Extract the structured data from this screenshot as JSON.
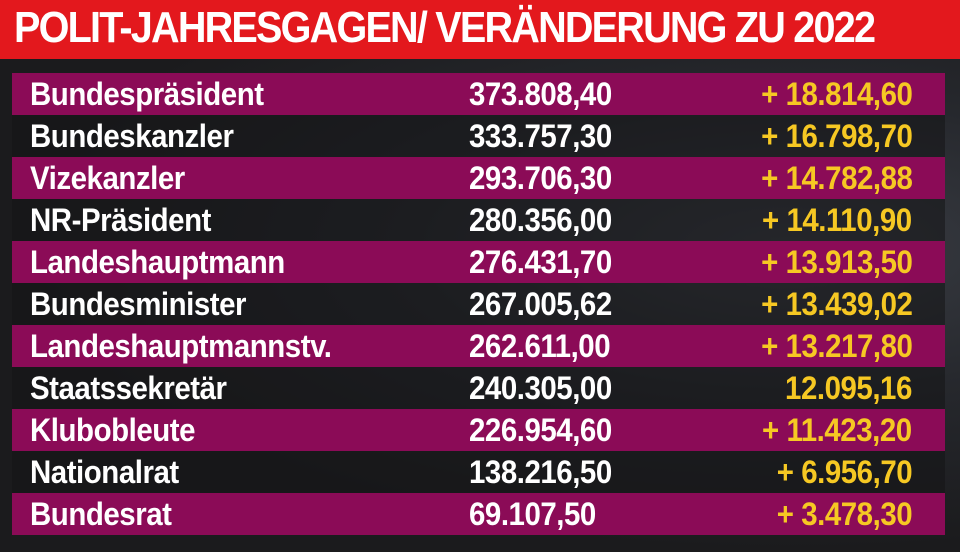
{
  "title": "POLIT-JAHRESGAGEN/ VERÄNDERUNG ZU 2022",
  "colors": {
    "title_bar": "#e3181d",
    "row_accent": "#8b0b57",
    "change_text": "#f6c823",
    "text": "#ffffff"
  },
  "chart_data": {
    "type": "table",
    "title": "POLIT-JAHRESGAGEN/ VERÄNDERUNG ZU 2022",
    "rows": [
      {
        "label": "Bundespräsident",
        "value": "373.808,40",
        "change": "+ 18.814,60"
      },
      {
        "label": "Bundeskanzler",
        "value": "333.757,30",
        "change": "+ 16.798,70"
      },
      {
        "label": "Vizekanzler",
        "value": "293.706,30",
        "change": "+ 14.782,88"
      },
      {
        "label": "NR-Präsident",
        "value": "280.356,00",
        "change": "+ 14.110,90"
      },
      {
        "label": "Landeshauptmann",
        "value": "276.431,70",
        "change": "+ 13.913,50"
      },
      {
        "label": "Bundesminister",
        "value": "267.005,62",
        "change": "+ 13.439,02"
      },
      {
        "label": "Landeshauptmannstv.",
        "value": "262.611,00",
        "change": "+ 13.217,80"
      },
      {
        "label": "Staatssekretär",
        "value": "240.305,00",
        "change": "12.095,16"
      },
      {
        "label": "Klubobleute",
        "value": "226.954,60",
        "change": "+ 11.423,20"
      },
      {
        "label": "Nationalrat",
        "value": "138.216,50",
        "change": "+ 6.956,70"
      },
      {
        "label": "Bundesrat",
        "value": "69.107,50",
        "change": "+ 3.478,30"
      }
    ]
  }
}
